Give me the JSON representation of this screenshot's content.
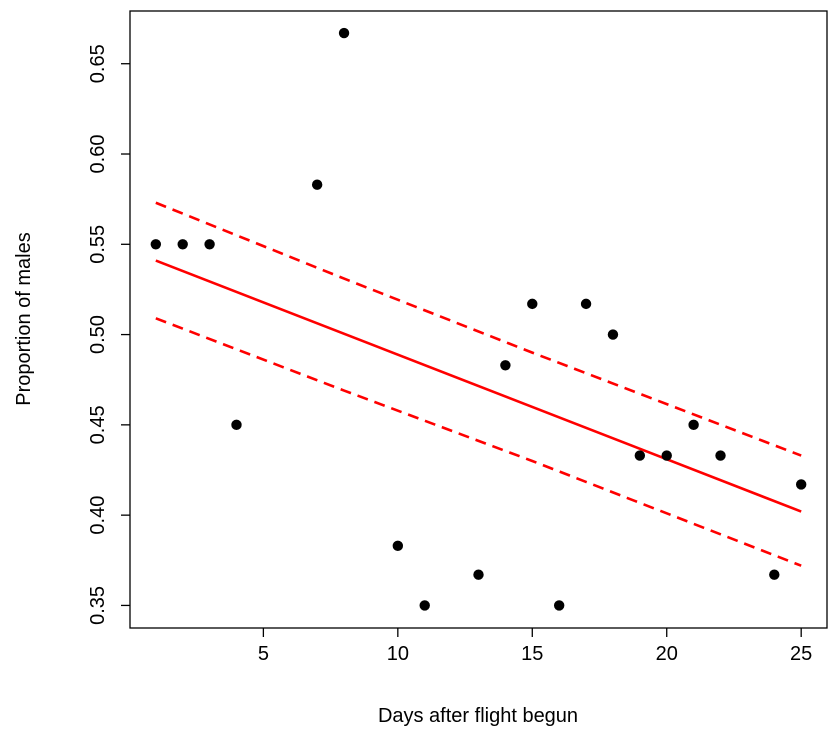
{
  "chart_data": {
    "type": "scatter",
    "title": "",
    "xlabel": "Days after flight begun",
    "ylabel": "Proportion of males",
    "xlim": [
      0.04,
      25.96
    ],
    "ylim": [
      0.3375,
      0.6792
    ],
    "x_ticks": [
      5,
      10,
      15,
      20,
      25
    ],
    "y_ticks": [
      0.35,
      0.4,
      0.45,
      0.5,
      0.55,
      0.6,
      0.65
    ],
    "x_tick_labels": [
      "5",
      "10",
      "15",
      "20",
      "25"
    ],
    "y_tick_labels": [
      "0.35",
      "0.40",
      "0.45",
      "0.50",
      "0.55",
      "0.60",
      "0.65"
    ],
    "grid": false,
    "legend": "none",
    "colors": {
      "points": "#000000",
      "fit": "#ff0000",
      "axes": "#000000"
    },
    "points": {
      "x": [
        1,
        2,
        3,
        4,
        7,
        8,
        10,
        11,
        13,
        14,
        15,
        16,
        17,
        18,
        19,
        20,
        21,
        22,
        24,
        25
      ],
      "y": [
        0.55,
        0.55,
        0.55,
        0.45,
        0.583,
        0.667,
        0.383,
        0.35,
        0.367,
        0.483,
        0.517,
        0.35,
        0.517,
        0.5,
        0.433,
        0.433,
        0.45,
        0.433,
        0.367,
        0.417
      ]
    },
    "fit_line": {
      "x": [
        1,
        25
      ],
      "y": [
        0.541,
        0.402
      ]
    },
    "confidence_band": {
      "style": "dashed",
      "upper": {
        "x": [
          1,
          8,
          15,
          25
        ],
        "y": [
          0.573,
          0.531,
          0.49,
          0.433
        ]
      },
      "lower": {
        "x": [
          1,
          8,
          15,
          25
        ],
        "y": [
          0.509,
          0.469,
          0.43,
          0.372
        ]
      }
    }
  }
}
